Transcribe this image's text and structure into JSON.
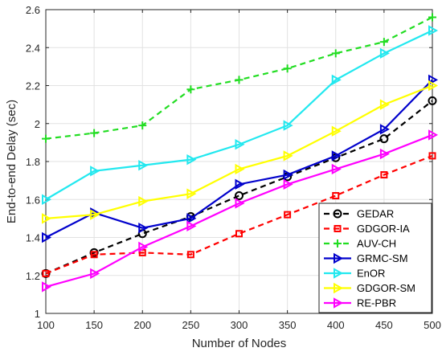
{
  "chart_data": {
    "type": "line",
    "title": "",
    "xlabel": "Number of Nodes",
    "ylabel": "End-to-end Delay (sec)",
    "x": [
      100,
      150,
      200,
      250,
      300,
      350,
      400,
      450,
      500
    ],
    "xlim": [
      100,
      500
    ],
    "ylim": [
      1,
      2.6
    ],
    "x_ticks": [
      "100",
      "150",
      "200",
      "250",
      "300",
      "350",
      "400",
      "450",
      "500"
    ],
    "y_ticks": [
      "1",
      "1.2",
      "1.4",
      "1.6",
      "1.8",
      "2",
      "2.2",
      "2.4",
      "2.6"
    ],
    "grid": true,
    "legend_position": "bottom-right",
    "series": [
      {
        "name": "GEDAR",
        "color": "#000000",
        "dash": "dashed",
        "marker": "circle",
        "values": [
          1.21,
          1.32,
          1.42,
          1.51,
          1.62,
          1.72,
          1.82,
          1.92,
          2.12
        ]
      },
      {
        "name": "GDGOR-IA",
        "color": "#ff0000",
        "dash": "dashed",
        "marker": "square",
        "values": [
          1.21,
          1.31,
          1.32,
          1.31,
          1.42,
          1.52,
          1.62,
          1.73,
          1.83
        ]
      },
      {
        "name": "AUV-CH",
        "color": "#22dd22",
        "dash": "dashed",
        "marker": "plus",
        "values": [
          1.92,
          1.95,
          1.99,
          2.18,
          2.23,
          2.29,
          2.37,
          2.43,
          2.56
        ]
      },
      {
        "name": "GRMC-SM",
        "color": "#0000cc",
        "dash": "solid",
        "marker": "triangle-right",
        "values": [
          1.4,
          1.53,
          1.45,
          1.5,
          1.68,
          1.73,
          1.83,
          1.97,
          2.23
        ]
      },
      {
        "name": "EnOR",
        "color": "#22e8ef",
        "dash": "solid",
        "marker": "triangle-right",
        "values": [
          1.6,
          1.75,
          1.78,
          1.81,
          1.89,
          1.99,
          2.23,
          2.37,
          2.49
        ]
      },
      {
        "name": "GDGOR-SM",
        "color": "#ffff00",
        "dash": "solid",
        "marker": "triangle-right",
        "values": [
          1.5,
          1.52,
          1.59,
          1.63,
          1.76,
          1.83,
          1.96,
          2.1,
          2.2
        ]
      },
      {
        "name": "RE-PBR",
        "color": "#ff00ff",
        "dash": "solid",
        "marker": "triangle-right",
        "values": [
          1.14,
          1.21,
          1.35,
          1.46,
          1.58,
          1.68,
          1.76,
          1.84,
          1.94
        ]
      }
    ]
  }
}
